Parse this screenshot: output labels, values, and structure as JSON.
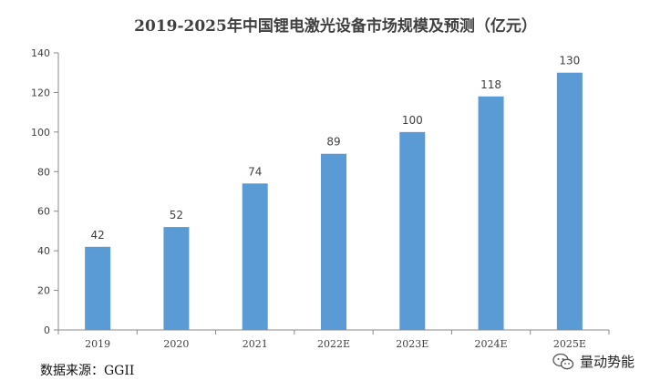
{
  "chart_data": {
    "type": "bar",
    "title": "2019-2025年中国锂电激光设备市场规模及预测（亿元）",
    "categories": [
      "2019",
      "2020",
      "2021",
      "2022E",
      "2023E",
      "2024E",
      "2025E"
    ],
    "values": [
      42,
      52,
      74,
      89,
      100,
      118,
      130
    ],
    "ylim": [
      0,
      140
    ],
    "yticks": [
      0,
      20,
      40,
      60,
      80,
      100,
      120,
      140
    ],
    "xlabel": "",
    "ylabel": "",
    "grid": false,
    "bar_color": "#5B9BD5"
  },
  "source": "数据来源：GGII",
  "watermark": {
    "text": "量动势能",
    "icon": "wechat-icon"
  }
}
